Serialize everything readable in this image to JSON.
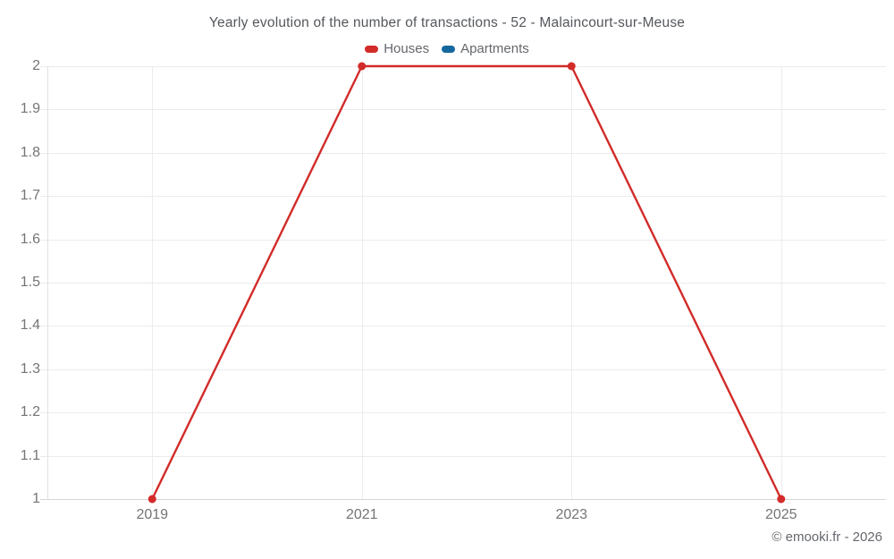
{
  "title": "Yearly evolution of the number of transactions - 52 - Malaincourt-sur-Meuse",
  "copyright": "© emooki.fr - 2026",
  "colors": {
    "houses": "#d22b29",
    "apartments": "#15689e",
    "gridline": "#ebebeb",
    "axis_text": "#757575"
  },
  "chart_data": {
    "type": "line",
    "categories": [
      "2019",
      "2021",
      "2023",
      "2025"
    ],
    "series": [
      {
        "name": "Houses",
        "color": "#d22b29",
        "values": [
          1,
          2,
          2,
          1
        ]
      },
      {
        "name": "Apartments",
        "color": "#15689e",
        "values": []
      }
    ],
    "title": "Yearly evolution of the number of transactions - 52 - Malaincourt-sur-Meuse",
    "xlabel": "",
    "ylabel": "",
    "ylim": [
      1,
      2
    ],
    "ytick_labels": [
      "2",
      "1.9",
      "1.8",
      "1.7",
      "1.6",
      "1.5",
      "1.4",
      "1.3",
      "1.2",
      "1.1",
      "1"
    ],
    "grid": true,
    "legend_position": "top"
  }
}
